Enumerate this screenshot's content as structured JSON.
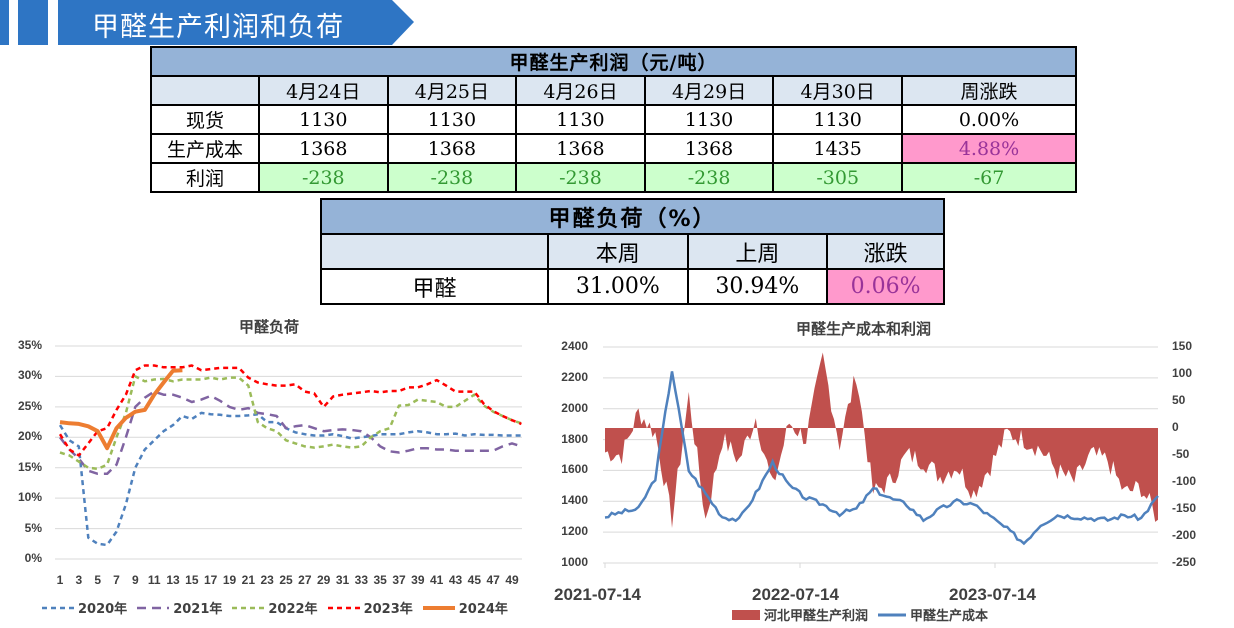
{
  "header": {
    "title": "甲醛生产利润和负荷",
    "colors": {
      "banner": "#2e75c4"
    }
  },
  "profit_table": {
    "title": "甲醛生产利润（元/吨）",
    "columns": [
      "",
      "4月24日",
      "4月25日",
      "4月26日",
      "4月29日",
      "4月30日",
      "周涨跌"
    ],
    "rows": [
      {
        "label": "现货",
        "values": [
          "1130",
          "1130",
          "1130",
          "1130",
          "1130"
        ],
        "change": "0.00%"
      },
      {
        "label": "生产成本",
        "values": [
          "1368",
          "1368",
          "1368",
          "1368",
          "1435"
        ],
        "change": "4.88%"
      },
      {
        "label": "利润",
        "values": [
          "-238",
          "-238",
          "-238",
          "-238",
          "-305"
        ],
        "change": "-67"
      }
    ]
  },
  "load_table": {
    "title": "甲醛负荷（%）",
    "columns": [
      "",
      "本周",
      "上周",
      "涨跌"
    ],
    "rows": [
      {
        "label": "甲醛",
        "this_week": "31.00%",
        "last_week": "30.94%",
        "change": "0.06%"
      }
    ]
  },
  "chart_data": [
    {
      "type": "line",
      "title": "甲醛负荷",
      "xlabel": "",
      "ylabel": "",
      "ylim": [
        0,
        35
      ],
      "yticks": [
        "0%",
        "5%",
        "10%",
        "15%",
        "20%",
        "25%",
        "30%",
        "35%"
      ],
      "xticks": [
        "1",
        "3",
        "5",
        "7",
        "9",
        "11",
        "13",
        "15",
        "17",
        "19",
        "21",
        "23",
        "25",
        "27",
        "29",
        "31",
        "33",
        "35",
        "37",
        "39",
        "41",
        "43",
        "45",
        "47",
        "49"
      ],
      "grid": true,
      "legend_position": "bottom",
      "series": [
        {
          "name": "2020年",
          "color": "#4f81bd",
          "style": "dashed",
          "x": [
            1,
            2,
            3,
            4,
            5,
            6,
            7,
            8,
            9,
            10,
            11,
            12,
            13,
            14,
            15,
            16,
            17,
            18,
            19,
            20,
            21,
            22,
            23,
            24,
            25,
            26,
            27,
            28,
            29,
            30,
            31,
            32,
            33,
            34,
            35,
            36,
            37,
            38,
            39,
            40,
            41,
            42,
            43,
            44,
            45,
            46,
            47,
            48,
            49,
            50
          ],
          "values": [
            22,
            19.5,
            18.5,
            3.5,
            2.5,
            2.3,
            4.5,
            9,
            15,
            18,
            19.5,
            21,
            22,
            23.5,
            23,
            24,
            23.8,
            23.7,
            23.5,
            23.5,
            23.6,
            23.8,
            22.5,
            22.5,
            21.5,
            20.8,
            20.5,
            20.3,
            20.3,
            20.5,
            20.2,
            19.8,
            20,
            20.2,
            20.5,
            20.5,
            20.5,
            20.8,
            21,
            20.8,
            20.5,
            20.5,
            20.6,
            20.3,
            20.5,
            20.4,
            20.4,
            20.3,
            20.3,
            20.3
          ]
        },
        {
          "name": "2021年",
          "color": "#8064a2",
          "style": "dashed",
          "x": [
            1,
            2,
            3,
            4,
            5,
            6,
            7,
            8,
            9,
            10,
            11,
            12,
            13,
            14,
            15,
            16,
            17,
            18,
            19,
            20,
            21,
            22,
            23,
            24,
            25,
            26,
            27,
            28,
            29,
            30,
            31,
            32,
            33,
            34,
            35,
            36,
            37,
            38,
            39,
            40,
            41,
            42,
            43,
            44,
            45,
            46,
            47,
            48,
            49,
            50
          ],
          "values": [
            20,
            18,
            16.5,
            14.5,
            14,
            14,
            15.5,
            20,
            25,
            26.5,
            27.5,
            27,
            27,
            26.5,
            25.8,
            26.2,
            26.8,
            26,
            25,
            24.5,
            24.8,
            24,
            23.8,
            23.5,
            21.5,
            21.8,
            22,
            21.5,
            21,
            21.2,
            21.3,
            21.2,
            21,
            20,
            18.5,
            17.7,
            17.5,
            17.8,
            18.2,
            18.2,
            18,
            18,
            17.8,
            17.8,
            17.8,
            17.8,
            17.8,
            18.5,
            19,
            18.5
          ]
        },
        {
          "name": "2022年",
          "color": "#9bbb59",
          "style": "dashed",
          "x": [
            1,
            2,
            3,
            4,
            5,
            6,
            7,
            8,
            9,
            10,
            11,
            12,
            13,
            14,
            15,
            16,
            17,
            18,
            19,
            20,
            21,
            22,
            23,
            24,
            25,
            26,
            27,
            28,
            29,
            30,
            31,
            32,
            33,
            34,
            35,
            36,
            37,
            38,
            39,
            40,
            41,
            42,
            43,
            44,
            45,
            46,
            47,
            48,
            49,
            50
          ],
          "values": [
            17.5,
            17,
            16,
            15,
            14.8,
            15.5,
            20,
            24,
            30,
            29.2,
            29.5,
            29.6,
            29.2,
            29.5,
            29.5,
            29.5,
            29.8,
            29.5,
            29.8,
            29.8,
            28.5,
            22.5,
            21.5,
            21,
            19.5,
            19,
            18.5,
            18.3,
            18.5,
            18.8,
            18.5,
            18.3,
            18.5,
            20,
            21,
            21.5,
            25.2,
            25.3,
            26.2,
            26,
            25.8,
            25,
            25,
            26,
            27,
            25.2,
            24.2,
            23.5,
            22.8,
            22.3
          ]
        },
        {
          "name": "2023年",
          "color": "#ff0000",
          "style": "dashed",
          "x": [
            1,
            2,
            3,
            4,
            5,
            6,
            7,
            8,
            9,
            10,
            11,
            12,
            13,
            14,
            15,
            16,
            17,
            18,
            19,
            20,
            21,
            22,
            23,
            24,
            25,
            26,
            27,
            28,
            29,
            30,
            31,
            32,
            33,
            34,
            35,
            36,
            37,
            38,
            39,
            40,
            41,
            42,
            43,
            44,
            45,
            46,
            47,
            48,
            49,
            50
          ],
          "values": [
            20.5,
            18,
            17,
            19,
            21,
            21.5,
            24.5,
            27,
            31,
            31.8,
            31.8,
            31.5,
            31.5,
            31.5,
            31.8,
            31,
            31.2,
            31.4,
            31.4,
            31.4,
            29.8,
            29,
            28.7,
            28.5,
            28.5,
            28.7,
            27.5,
            27.2,
            25,
            26.7,
            27,
            27.2,
            27.4,
            27.6,
            27.4,
            27.6,
            27.6,
            28.2,
            28.2,
            28.7,
            29.4,
            28.5,
            27.5,
            27.5,
            27.5,
            25.5,
            24.3,
            23.5,
            22.8,
            22.2
          ]
        },
        {
          "name": "2024年",
          "color": "#ed7d31",
          "style": "solid",
          "x": [
            1,
            2,
            3,
            4,
            5,
            6,
            7,
            8,
            9,
            10,
            11,
            12,
            13,
            14
          ],
          "values": [
            22.5,
            22.3,
            22.2,
            21.8,
            21,
            18.2,
            21.5,
            23.2,
            24.2,
            24.5,
            27,
            29,
            30.94,
            31
          ]
        }
      ]
    },
    {
      "type": "bar+line",
      "title": "甲醛生产成本和利润",
      "xlabel": "",
      "xticks": [
        "2021-07-14",
        "2022-07-14",
        "2023-07-14"
      ],
      "ylim_left": [
        1000,
        2400
      ],
      "yticks_left": [
        "1000",
        "1200",
        "1400",
        "1600",
        "1800",
        "2000",
        "2200",
        "2400"
      ],
      "ylim_right": [
        -250,
        150
      ],
      "yticks_right": [
        "-250",
        "-200",
        "-150",
        "-100",
        "-50",
        "0",
        "50",
        "100",
        "150"
      ],
      "grid": true,
      "legend_position": "bottom",
      "series": [
        {
          "name": "河北甲醛生产利润",
          "axis": "right",
          "type": "area",
          "color": "#c0504d",
          "x": [
            "2021-07",
            "2021-08",
            "2021-09",
            "2021-10",
            "2021-11",
            "2021-12",
            "2022-01",
            "2022-02",
            "2022-03",
            "2022-04",
            "2022-05",
            "2022-06",
            "2022-07",
            "2022-08",
            "2022-09",
            "2022-10",
            "2022-11",
            "2022-12",
            "2023-01",
            "2023-02",
            "2023-03",
            "2023-04",
            "2023-05",
            "2023-06",
            "2023-07",
            "2023-08",
            "2023-09",
            "2023-10",
            "2023-11",
            "2023-12",
            "2024-01",
            "2024-02",
            "2024-03",
            "2024-04"
          ],
          "values": [
            -45,
            -50,
            30,
            -10,
            -170,
            60,
            -170,
            -20,
            -60,
            20,
            -110,
            10,
            -20,
            130,
            -30,
            100,
            -120,
            -100,
            -50,
            -60,
            -90,
            -70,
            -120,
            -70,
            -10,
            -20,
            -40,
            -80,
            -100,
            -50,
            -60,
            -120,
            -110,
            -170
          ]
        },
        {
          "name": "甲醛生产成本",
          "axis": "left",
          "type": "line",
          "color": "#4f81bd",
          "x": [
            "2021-07",
            "2021-08",
            "2021-09",
            "2021-10",
            "2021-11",
            "2021-12",
            "2022-01",
            "2022-02",
            "2022-03",
            "2022-04",
            "2022-05",
            "2022-06",
            "2022-07",
            "2022-08",
            "2022-09",
            "2022-10",
            "2022-11",
            "2022-12",
            "2023-01",
            "2023-02",
            "2023-03",
            "2023-04",
            "2023-05",
            "2023-06",
            "2023-07",
            "2023-08",
            "2023-09",
            "2023-10",
            "2023-11",
            "2023-12",
            "2024-01",
            "2024-02",
            "2024-03",
            "2024-04"
          ],
          "values": [
            1300,
            1330,
            1350,
            1550,
            2250,
            1600,
            1450,
            1300,
            1280,
            1450,
            1650,
            1500,
            1420,
            1380,
            1320,
            1350,
            1480,
            1420,
            1380,
            1280,
            1350,
            1400,
            1380,
            1300,
            1220,
            1130,
            1250,
            1310,
            1300,
            1290,
            1280,
            1310,
            1290,
            1435
          ]
        }
      ]
    }
  ]
}
